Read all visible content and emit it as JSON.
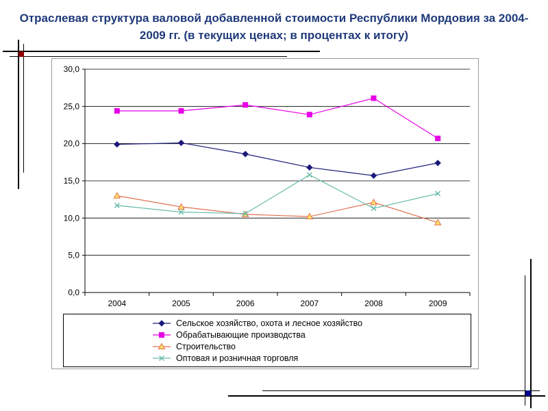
{
  "title": "Отраслевая структура валовой добавленной стоимости Республики Мордовия за  2004-2009 гг. (в текущих ценах; в процентах к итогу)",
  "chart_data": {
    "type": "line",
    "x": [
      "2004",
      "2005",
      "2006",
      "2007",
      "2008",
      "2009"
    ],
    "ylim": [
      0,
      30
    ],
    "yticks": [
      "0,0",
      "5,0",
      "10,0",
      "15,0",
      "20,0",
      "25,0",
      "30,0"
    ],
    "ytick_values": [
      0,
      5,
      10,
      15,
      20,
      25,
      30
    ],
    "grid": true,
    "legend_position": "bottom",
    "series": [
      {
        "name": "Сельское хозяйство, охота и лесное хозяйство",
        "values": [
          19.9,
          20.1,
          18.6,
          16.8,
          15.7,
          17.4
        ],
        "color": "#1a1a7a",
        "marker": "diamond"
      },
      {
        "name": "Обрабатывающие производства",
        "values": [
          24.4,
          24.4,
          25.2,
          23.9,
          26.1,
          20.7
        ],
        "color": "#e600e6",
        "marker": "square"
      },
      {
        "name": "Строительство",
        "values": [
          13.0,
          11.5,
          10.5,
          10.2,
          12.1,
          9.4
        ],
        "color": "#e07050",
        "marker": "triangle"
      },
      {
        "name": "Оптовая  и розничная торговля",
        "values": [
          11.7,
          10.8,
          10.6,
          15.8,
          11.3,
          13.3
        ],
        "color": "#66bbaa",
        "marker": "x"
      }
    ]
  }
}
